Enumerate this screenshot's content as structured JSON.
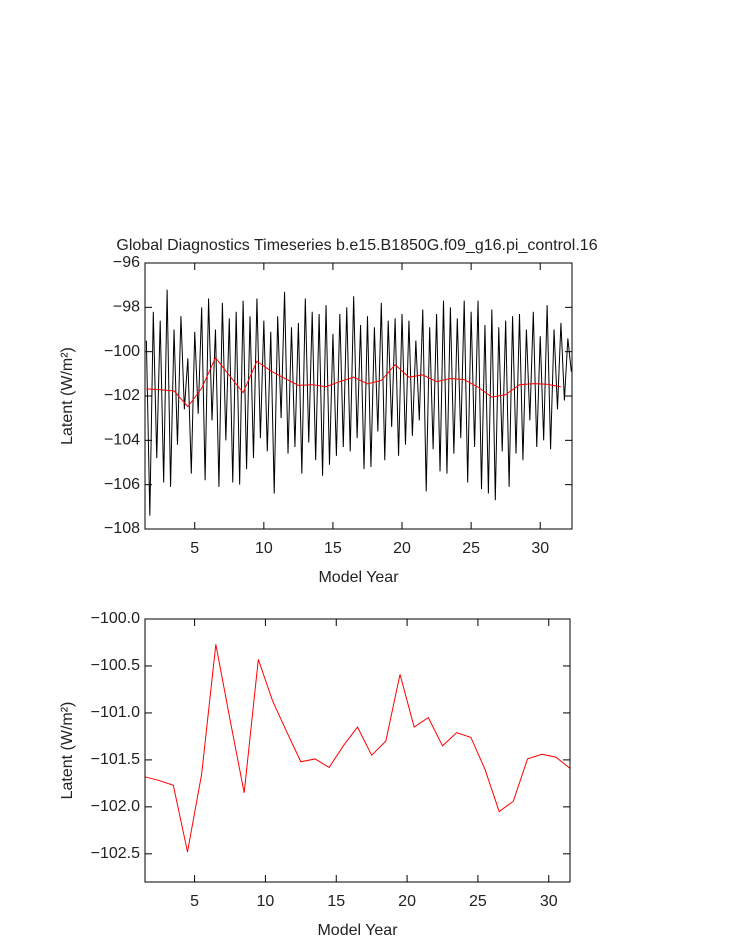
{
  "chart_data": [
    {
      "type": "line",
      "title": "Global Diagnostics Timeseries b.e15.B1850G.f09_g16.pi_control.16",
      "x_label": "Model Year",
      "y_label": "Latent (W/m²)",
      "xlim": [
        1.4,
        32.3
      ],
      "xticks": [
        5,
        10,
        15,
        20,
        25,
        30
      ],
      "ylim": [
        -108,
        -96
      ],
      "yticks": [
        {
          "value": -108,
          "label": "−108"
        },
        {
          "value": -106,
          "label": "−106"
        },
        {
          "value": -104,
          "label": "−104"
        },
        {
          "value": -102,
          "label": "−102"
        },
        {
          "value": -100,
          "label": "−100"
        },
        {
          "value": -98,
          "label": "−98"
        },
        {
          "value": -96,
          "label": "−96"
        }
      ],
      "series": [
        {
          "color": "#000000",
          "x": [
            1.5,
            1.75,
            2,
            2.25,
            2.5,
            2.75,
            3,
            3.25,
            3.5,
            3.75,
            4,
            4.25,
            4.5,
            4.75,
            5,
            5.25,
            5.5,
            5.75,
            6,
            6.25,
            6.5,
            6.75,
            7,
            7.25,
            7.5,
            7.75,
            8,
            8.25,
            8.5,
            8.75,
            9,
            9.25,
            9.5,
            9.75,
            10,
            10.25,
            10.5,
            10.75,
            11,
            11.25,
            11.5,
            11.75,
            12,
            12.25,
            12.5,
            12.75,
            13,
            13.25,
            13.5,
            13.75,
            14,
            14.25,
            14.5,
            14.75,
            15,
            15.25,
            15.5,
            15.75,
            16,
            16.25,
            16.5,
            16.75,
            17,
            17.25,
            17.5,
            17.75,
            18,
            18.25,
            18.5,
            18.75,
            19,
            19.25,
            19.5,
            19.75,
            20,
            20.25,
            20.5,
            20.75,
            21,
            21.25,
            21.5,
            21.75,
            22,
            22.25,
            22.5,
            22.75,
            23,
            23.25,
            23.5,
            23.75,
            24,
            24.25,
            24.5,
            24.75,
            25,
            25.25,
            25.5,
            25.75,
            26,
            26.25,
            26.5,
            26.75,
            27,
            27.25,
            27.5,
            27.75,
            28,
            28.25,
            28.5,
            28.75,
            29,
            29.25,
            29.5,
            29.75,
            30,
            30.25,
            30.5,
            30.75,
            31,
            31.25,
            31.5,
            31.75,
            32,
            32.25
          ],
          "values": [
            -99.5,
            -107.4,
            -98.2,
            -104.8,
            -98.6,
            -105.9,
            -97.2,
            -106.1,
            -99.0,
            -104.2,
            -98.4,
            -102.6,
            -100.3,
            -105.5,
            -99.1,
            -102.8,
            -98.0,
            -105.8,
            -97.6,
            -103.1,
            -99.0,
            -106.1,
            -97.8,
            -104.0,
            -98.5,
            -105.9,
            -98.2,
            -106.0,
            -97.7,
            -105.3,
            -98.4,
            -104.8,
            -97.6,
            -103.9,
            -98.6,
            -104.5,
            -99.1,
            -106.4,
            -98.4,
            -103.0,
            -97.3,
            -104.6,
            -98.9,
            -104.3,
            -98.7,
            -105.5,
            -97.6,
            -104.1,
            -98.2,
            -104.9,
            -98.3,
            -105.6,
            -97.9,
            -105.1,
            -99.2,
            -104.7,
            -98.3,
            -104.3,
            -98.0,
            -104.5,
            -97.5,
            -103.9,
            -98.8,
            -105.3,
            -98.4,
            -105.2,
            -98.9,
            -103.6,
            -97.8,
            -104.9,
            -98.6,
            -103.4,
            -98.5,
            -104.7,
            -98.3,
            -104.2,
            -98.6,
            -103.8,
            -99.5,
            -103.1,
            -98.1,
            -106.3,
            -98.9,
            -104.4,
            -98.3,
            -105.4,
            -97.7,
            -105.5,
            -98.0,
            -104.6,
            -98.5,
            -103.9,
            -97.7,
            -105.9,
            -98.2,
            -104.3,
            -97.7,
            -106.2,
            -98.8,
            -106.4,
            -98.1,
            -106.7,
            -98.9,
            -104.5,
            -98.6,
            -106.1,
            -98.4,
            -104.6,
            -98.3,
            -104.9,
            -99.0,
            -103.1,
            -98.2,
            -104.3,
            -99.3,
            -104.0,
            -97.9,
            -104.4,
            -99.0,
            -102.6,
            -98.7,
            -102.2,
            -99.4,
            -100.9
          ]
        },
        {
          "color": "#ff0000",
          "x": [
            1.5,
            2.5,
            3.5,
            4.5,
            5.5,
            6.5,
            7.5,
            8.5,
            9.5,
            10.5,
            11.5,
            12.5,
            13.5,
            14.5,
            15.5,
            16.5,
            17.5,
            18.5,
            19.5,
            20.5,
            21.5,
            22.5,
            23.5,
            24.5,
            25.5,
            26.5,
            27.5,
            28.5,
            29.5,
            30.5,
            31.5
          ],
          "values": [
            -101.68,
            -101.72,
            -101.77,
            -102.48,
            -101.65,
            -100.27,
            -101.07,
            -101.85,
            -100.43,
            -100.87,
            -101.2,
            -101.52,
            -101.49,
            -101.58,
            -101.35,
            -101.15,
            -101.45,
            -101.3,
            -100.59,
            -101.15,
            -101.05,
            -101.35,
            -101.21,
            -101.26,
            -101.6,
            -102.05,
            -101.94,
            -101.49,
            -101.44,
            -101.47,
            -101.59
          ]
        }
      ]
    },
    {
      "type": "line",
      "x_label": "Model Year",
      "y_label": "Latent (W/m²)",
      "xlim": [
        1.5,
        31.5
      ],
      "xticks": [
        5,
        10,
        15,
        20,
        25,
        30
      ],
      "ylim": [
        -102.8,
        -100.0
      ],
      "yticks": [
        {
          "value": -102.5,
          "label": "−102.5"
        },
        {
          "value": -102.0,
          "label": "−102.0"
        },
        {
          "value": -101.5,
          "label": "−101.5"
        },
        {
          "value": -101.0,
          "label": "−101.0"
        },
        {
          "value": -100.5,
          "label": "−100.5"
        },
        {
          "value": -100.0,
          "label": "−100.0"
        }
      ],
      "series": [
        {
          "color": "#ff0000",
          "x": [
            1.5,
            2.5,
            3.5,
            4.5,
            5.5,
            6.5,
            7.5,
            8.5,
            9.5,
            10.5,
            11.5,
            12.5,
            13.5,
            14.5,
            15.5,
            16.5,
            17.5,
            18.5,
            19.5,
            20.5,
            21.5,
            22.5,
            23.5,
            24.5,
            25.5,
            26.5,
            27.5,
            28.5,
            29.5,
            30.5,
            31.5
          ],
          "values": [
            -101.68,
            -101.72,
            -101.77,
            -102.48,
            -101.65,
            -100.27,
            -101.07,
            -101.85,
            -100.43,
            -100.87,
            -101.2,
            -101.52,
            -101.49,
            -101.58,
            -101.35,
            -101.15,
            -101.45,
            -101.3,
            -100.59,
            -101.15,
            -101.05,
            -101.35,
            -101.21,
            -101.26,
            -101.6,
            -102.05,
            -101.94,
            -101.49,
            -101.44,
            -101.47,
            -101.59
          ]
        }
      ]
    }
  ]
}
